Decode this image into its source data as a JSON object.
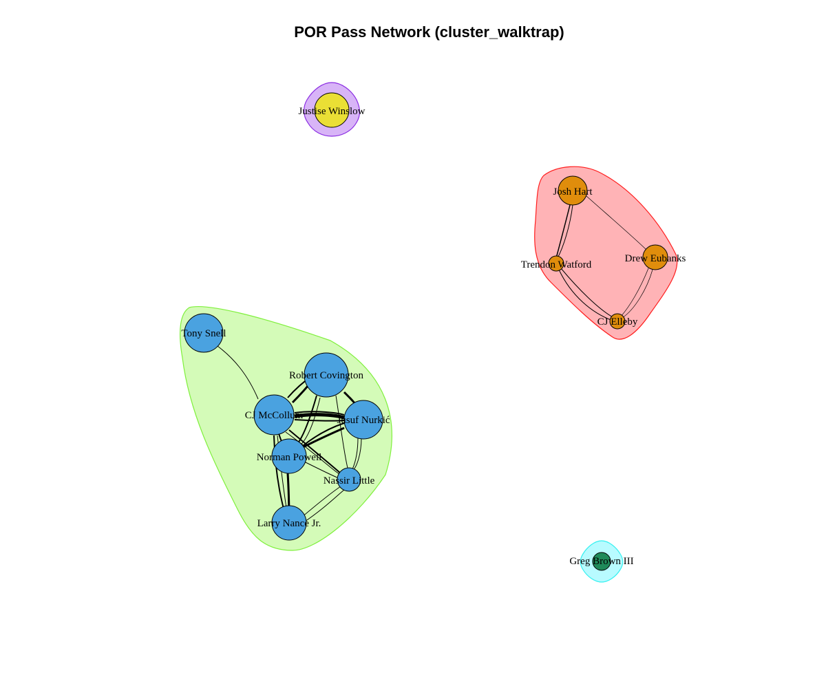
{
  "title": "POR Pass Network (cluster_walktrap)",
  "clusters": [
    {
      "id": "green",
      "fill": "#d4fbb8",
      "stroke": "#7ff03c"
    },
    {
      "id": "red",
      "fill": "#ffb3b6",
      "stroke": "#ff1b1b"
    },
    {
      "id": "purple",
      "fill": "#d8b4f7",
      "stroke": "#8a2be2"
    },
    {
      "id": "cyan",
      "fill": "#b8fbff",
      "stroke": "#33f0f0"
    }
  ],
  "node_colors": {
    "blue": "#4aa2e0",
    "orange": "#e08d0c",
    "yellow": "#eadf35",
    "green": "#1f8a5a"
  },
  "nodes": [
    {
      "id": "snell",
      "label": "Tony Snell",
      "color": "blue"
    },
    {
      "id": "covington",
      "label": "Robert Covington",
      "color": "blue"
    },
    {
      "id": "mccollum",
      "label": "CJ McCollum",
      "color": "blue"
    },
    {
      "id": "nurkic",
      "label": "Jusuf Nurkić",
      "color": "blue"
    },
    {
      "id": "powell",
      "label": "Norman Powell",
      "color": "blue"
    },
    {
      "id": "little",
      "label": "Nassir Little",
      "color": "blue"
    },
    {
      "id": "nance",
      "label": "Larry Nance Jr.",
      "color": "blue"
    },
    {
      "id": "hart",
      "label": "Josh Hart",
      "color": "orange"
    },
    {
      "id": "eubanks",
      "label": "Drew Eubanks",
      "color": "orange"
    },
    {
      "id": "watford",
      "label": "Trendon Watford",
      "color": "orange"
    },
    {
      "id": "elleby",
      "label": "CJ Elleby",
      "color": "orange"
    },
    {
      "id": "winslow",
      "label": "Justise Winslow",
      "color": "yellow"
    },
    {
      "id": "brown",
      "label": "Greg Brown III",
      "color": "green"
    }
  ]
}
